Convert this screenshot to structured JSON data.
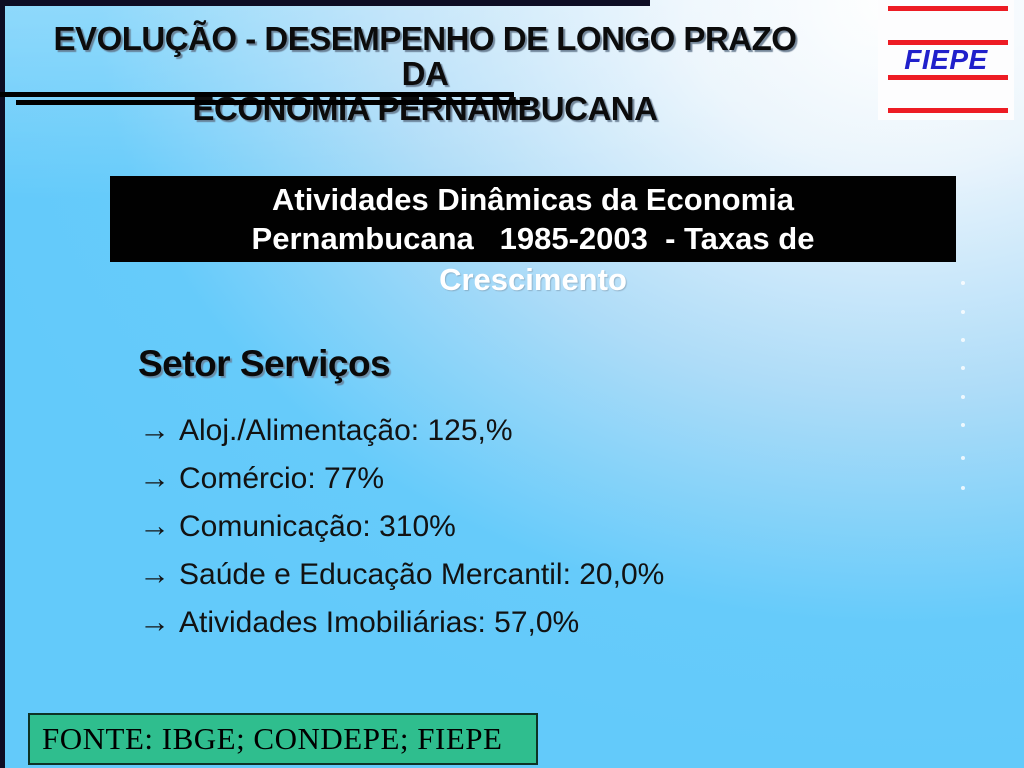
{
  "slide": {
    "header": {
      "title_line1": "EVOLUÇÃO - DESEMPENHO DE LONGO PRAZO DA",
      "title_line2": "ECONOMIA PERNAMBUCANA"
    },
    "logo": {
      "text": "FIEPE",
      "bar_color": "#ED1C24",
      "text_color": "#2020CB",
      "background": "#FDFDFE"
    },
    "title_box": {
      "line1": "Atividades Dinâmicas da Economia",
      "line2": "Pernambucana   1985-2003  - Taxas de",
      "line3": "Crescimento",
      "background": "#000000",
      "text_color": "#FFFFFF"
    },
    "section_heading": "Setor Serviços",
    "bullets": [
      {
        "marker": "→",
        "text": "Aloj./Alimentação: 125,%"
      },
      {
        "marker": "→",
        "text": "Comércio: 77%"
      },
      {
        "marker": "→",
        "text": "Comunicação: 310%"
      },
      {
        "marker": "→",
        "text": "Saúde e Educação Mercantil: 20,0%"
      },
      {
        "marker": "→",
        "text": "Atividades Imobiliárias: 57,0%"
      }
    ],
    "source_box": {
      "text": "FONTE: IBGE; CONDEPE; FIEPE",
      "background": "#2FBE8E"
    },
    "colors": {
      "frame_border": "#0D0D24",
      "background_bottom": "#66CBFA",
      "background_top_right": "#FFFFFF"
    }
  }
}
